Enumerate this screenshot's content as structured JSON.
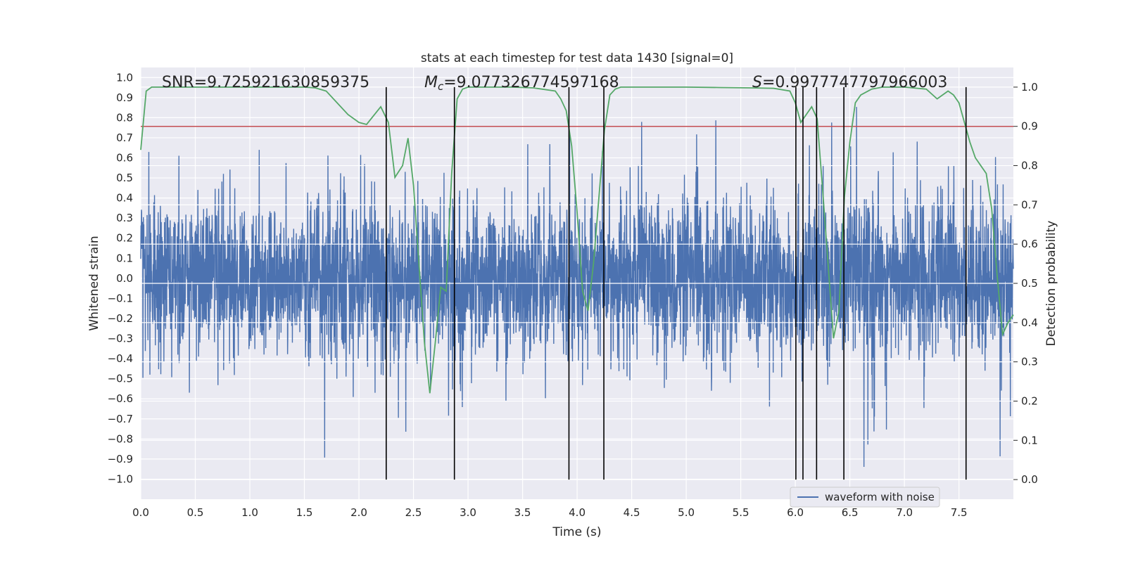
{
  "chart_data": {
    "type": "line",
    "title": "stats at each timestep for test data 1430 [signal=0]",
    "xlabel": "Time (s)",
    "ylabel_left": "Whitened strain",
    "ylabel_right": "Detection probability",
    "xlim": [
      0.0,
      7.999
    ],
    "ylim_left": [
      -1.1,
      1.05
    ],
    "ylim_right": [
      -0.05,
      1.05
    ],
    "grid": true,
    "x_ticks": [
      "0.0",
      "0.5",
      "1.0",
      "1.5",
      "2.0",
      "2.5",
      "3.0",
      "3.5",
      "4.0",
      "4.5",
      "5.0",
      "5.5",
      "6.0",
      "6.5",
      "7.0",
      "7.5"
    ],
    "x_tick_values": [
      0.0,
      0.5,
      1.0,
      1.5,
      2.0,
      2.5,
      3.0,
      3.5,
      4.0,
      4.5,
      5.0,
      5.5,
      6.0,
      6.5,
      7.0,
      7.5
    ],
    "y_ticks_left": [
      "1.0",
      "0.9",
      "0.8",
      "0.7",
      "0.6",
      "0.5",
      "0.4",
      "0.3",
      "0.2",
      "0.1",
      "0.0",
      "−0.1",
      "−0.2",
      "−0.3",
      "−0.4",
      "−0.5",
      "−0.6",
      "−0.7",
      "−0.8",
      "−0.9",
      "−1.0"
    ],
    "y_tick_values_left": [
      1.0,
      0.9,
      0.8,
      0.7,
      0.6,
      0.5,
      0.4,
      0.3,
      0.2,
      0.1,
      0.0,
      -0.1,
      -0.2,
      -0.3,
      -0.4,
      -0.5,
      -0.6,
      -0.7,
      -0.8,
      -0.9,
      -1.0
    ],
    "y_ticks_right": [
      "1.0",
      "0.9",
      "0.8",
      "0.7",
      "0.6",
      "0.5",
      "0.4",
      "0.3",
      "0.2",
      "0.1",
      "0.0"
    ],
    "y_tick_values_right": [
      1.0,
      0.9,
      0.8,
      0.7,
      0.6,
      0.5,
      0.4,
      0.3,
      0.2,
      0.1,
      0.0
    ],
    "annotations": {
      "snr": "SNR=9.725921630859375",
      "mc_prefix": "M",
      "mc_sub": "c",
      "mc_value": "=9.077326774597168",
      "s_prefix": "S",
      "s_value": "=0.9977747797966003"
    },
    "threshold": 0.9,
    "threshold_color": "#c44e52",
    "waveform": {
      "name": "waveform with noise",
      "color": "#4c72b0",
      "envelope_std": 0.19,
      "max_abs": 0.99
    },
    "probability": {
      "color": "#55a868",
      "x": [
        0.0,
        0.05,
        0.1,
        0.2,
        0.4,
        0.6,
        0.8,
        1.0,
        1.2,
        1.4,
        1.5,
        1.6,
        1.7,
        1.8,
        1.9,
        2.0,
        2.07,
        2.2,
        2.27,
        2.33,
        2.4,
        2.45,
        2.5,
        2.55,
        2.6,
        2.65,
        2.7,
        2.75,
        2.8,
        2.85,
        2.9,
        2.95,
        3.0,
        3.2,
        3.4,
        3.6,
        3.8,
        3.85,
        3.9,
        3.95,
        4.0,
        4.05,
        4.1,
        4.15,
        4.2,
        4.25,
        4.3,
        4.35,
        4.4,
        4.5,
        4.7,
        5.0,
        5.3,
        5.6,
        5.8,
        5.95,
        6.0,
        6.05,
        6.1,
        6.15,
        6.2,
        6.25,
        6.3,
        6.35,
        6.4,
        6.45,
        6.5,
        6.55,
        6.6,
        6.7,
        6.8,
        7.0,
        7.2,
        7.3,
        7.4,
        7.45,
        7.5,
        7.55,
        7.6,
        7.65,
        7.7,
        7.75,
        7.8,
        7.85,
        7.9,
        7.95
      ],
      "y": [
        0.84,
        0.99,
        1.0,
        1.0,
        1.0,
        1.0,
        1.0,
        1.0,
        1.0,
        1.0,
        1.0,
        0.998,
        0.99,
        0.96,
        0.93,
        0.91,
        0.905,
        0.95,
        0.91,
        0.77,
        0.8,
        0.87,
        0.75,
        0.55,
        0.35,
        0.22,
        0.35,
        0.49,
        0.48,
        0.78,
        0.97,
        0.995,
        1.0,
        1.0,
        1.0,
        0.998,
        0.99,
        0.97,
        0.94,
        0.85,
        0.68,
        0.48,
        0.43,
        0.55,
        0.72,
        0.89,
        0.98,
        0.995,
        1.0,
        1.0,
        1.0,
        1.0,
        0.999,
        0.998,
        0.997,
        0.99,
        0.96,
        0.91,
        0.93,
        0.95,
        0.92,
        0.74,
        0.55,
        0.36,
        0.43,
        0.72,
        0.86,
        0.96,
        0.98,
        0.995,
        1.0,
        1.0,
        0.995,
        0.97,
        0.99,
        0.98,
        0.96,
        0.91,
        0.86,
        0.82,
        0.8,
        0.78,
        0.69,
        0.52,
        0.37,
        0.4
      ],
      "y_last": 0.42
    },
    "vertical_lines_x": [
      2.25,
      2.875,
      3.925,
      4.245,
      6.005,
      6.07,
      6.195,
      6.445,
      7.565
    ],
    "vertical_lines_color": "#000000",
    "legend": {
      "position": "lower-right",
      "label": "waveform with noise"
    },
    "colors": {
      "background": "#eaeaf2",
      "grid": "#ffffff",
      "text": "#262626"
    }
  }
}
